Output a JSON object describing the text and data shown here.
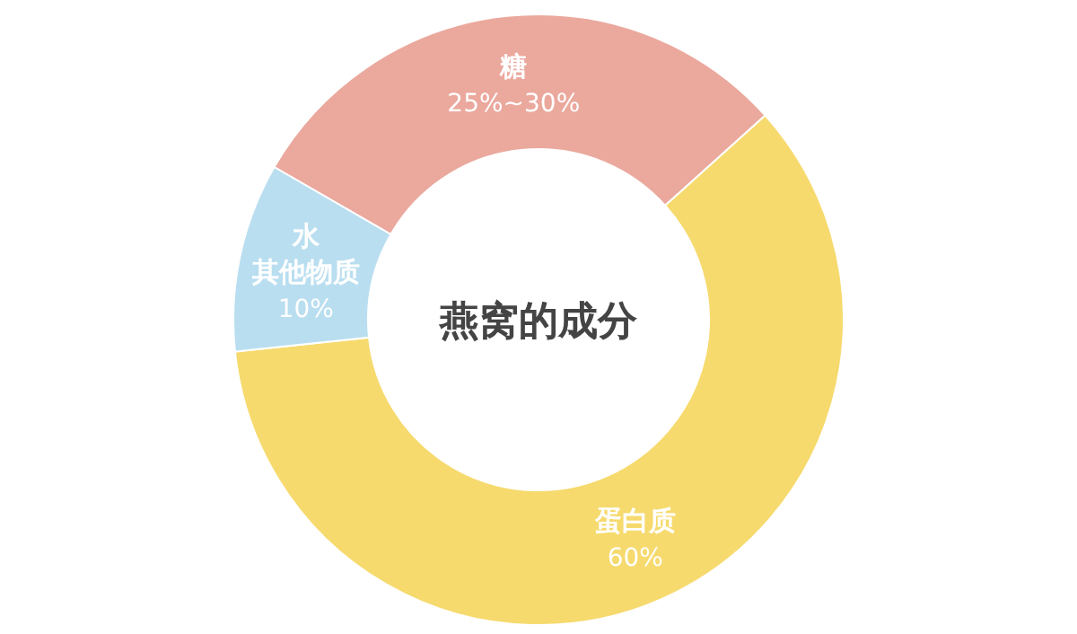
{
  "chart_data": {
    "type": "donut",
    "title": "燕窝的成分",
    "categories": [
      "糖",
      "蛋白质",
      "水其他物质"
    ],
    "values": [
      30,
      60,
      10
    ],
    "value_labels": [
      "25%~30%",
      "60%",
      "10%"
    ],
    "colors": [
      "#eba89d",
      "#f6da6e",
      "#b9def0"
    ]
  }
}
